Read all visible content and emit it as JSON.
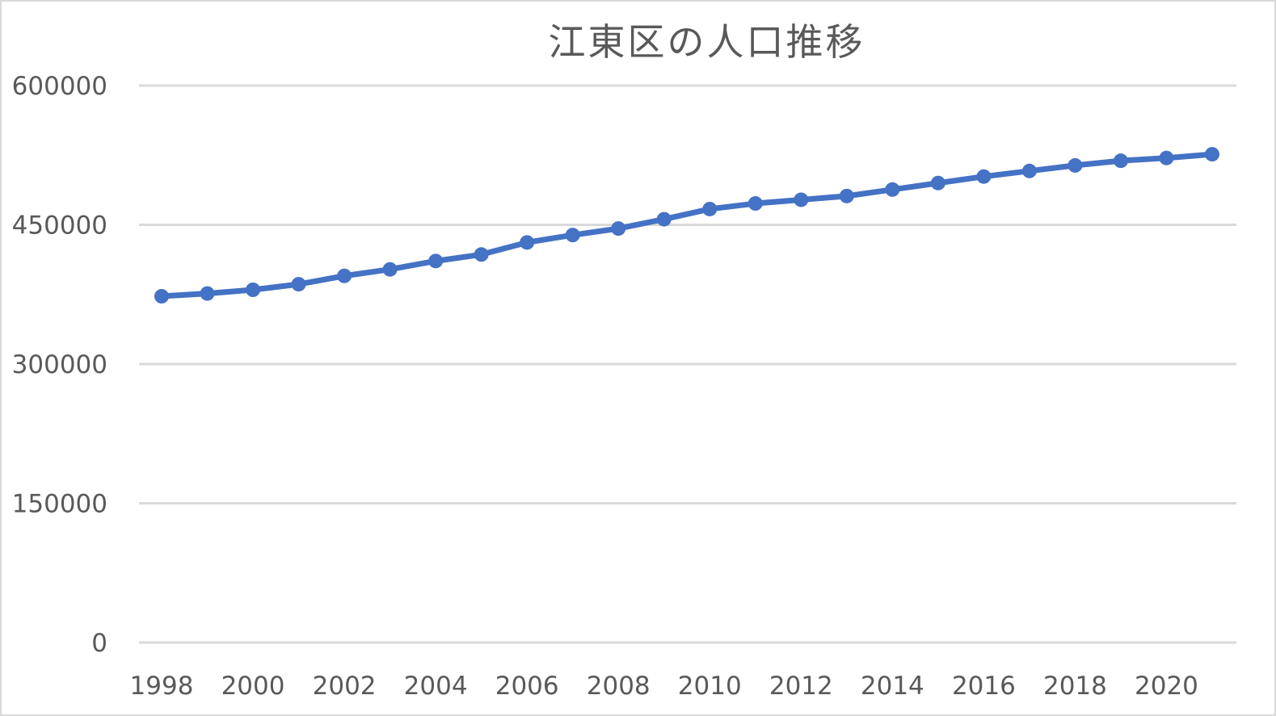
{
  "chart_data": {
    "type": "line",
    "title": "江東区の人口推移",
    "xlabel": "",
    "ylabel": "",
    "x": [
      1998,
      1999,
      2000,
      2001,
      2002,
      2003,
      2004,
      2005,
      2006,
      2007,
      2008,
      2009,
      2010,
      2011,
      2012,
      2013,
      2014,
      2015,
      2016,
      2017,
      2018,
      2019,
      2020,
      2021
    ],
    "x_tick_labels": [
      "1998",
      "2000",
      "2002",
      "2004",
      "2006",
      "2008",
      "2010",
      "2012",
      "2014",
      "2016",
      "2018",
      "2020"
    ],
    "y_tick_labels": [
      "0",
      "150000",
      "300000",
      "450000",
      "600000"
    ],
    "ylim": [
      0,
      600000
    ],
    "series": [
      {
        "values": [
          373000,
          376000,
          380000,
          386000,
          395000,
          402000,
          411000,
          418000,
          431000,
          439000,
          446000,
          456000,
          467000,
          473000,
          477000,
          481000,
          488000,
          495000,
          502000,
          508000,
          514000,
          519000,
          522000,
          526000
        ]
      }
    ],
    "grid": true,
    "legend": "none",
    "line_color": "#4472c4",
    "grid_color": "#d9d9d9",
    "text_color": "#595959"
  }
}
